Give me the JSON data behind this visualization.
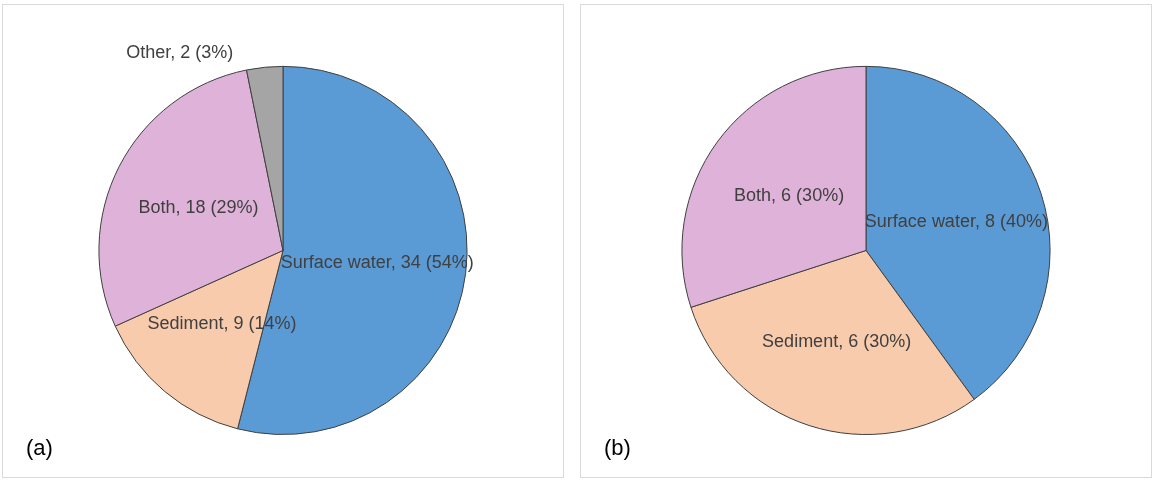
{
  "chart_data": [
    {
      "type": "pie",
      "title": "(a)",
      "categories": [
        "Surface water",
        "Sediment",
        "Both",
        "Other"
      ],
      "values": [
        34,
        9,
        18,
        2
      ],
      "colors": [
        "#5b9bd5",
        "#f8cbad",
        "#dfb3d9",
        "#a5a5a5"
      ],
      "value_labels": [
        "34 (54%)",
        "9 (14%)",
        "18 (29%)",
        "2 (3%)"
      ]
    },
    {
      "type": "pie",
      "title": "(b)",
      "categories": [
        "Surface water",
        "Sediment",
        "Both"
      ],
      "values": [
        8,
        6,
        6
      ],
      "colors": [
        "#5b9bd5",
        "#f8cbad",
        "#dfb3d9"
      ],
      "value_labels": [
        "8 (40%)",
        "6 (30%)",
        "6 (30%)"
      ]
    }
  ]
}
